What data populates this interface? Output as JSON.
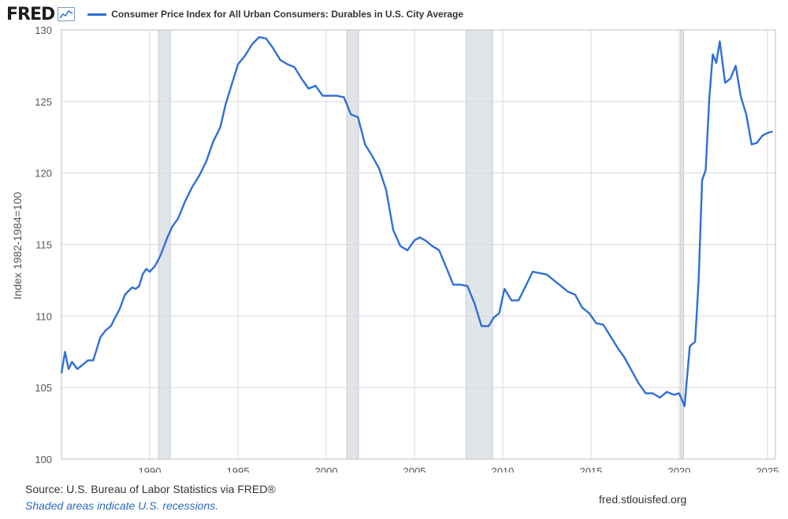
{
  "header": {
    "logo_text": "FRED",
    "logo_icon": "line-chart-icon",
    "series_title": "Consumer Price Index for All Urban Consumers: Durables in U.S. City Average"
  },
  "footer": {
    "source": "Source: U.S. Bureau of Labor Statistics via FRED®",
    "recession_note": "Shaded areas indicate U.S. recessions.",
    "site": "fred.stlouisfed.org"
  },
  "colors": {
    "line": "#2f6fd6",
    "grid": "#d9d9d9",
    "recession": "#e1e5ea",
    "axis_text": "#555555"
  },
  "chart_data": {
    "type": "line",
    "title": "",
    "ylabel": "Index 1982-1984=100",
    "xlabel": "",
    "xlim": [
      1985.0,
      2025.45
    ],
    "ylim": [
      100,
      130
    ],
    "yticks": [
      100,
      105,
      110,
      115,
      120,
      125,
      130
    ],
    "xticks": [
      1990,
      1995,
      2000,
      2005,
      2010,
      2015,
      2020,
      2025
    ],
    "grid": true,
    "legend": "top-left",
    "recessions": [
      [
        1990.5,
        1991.17
      ],
      [
        2001.17,
        2001.83
      ],
      [
        2007.92,
        2009.42
      ],
      [
        2020.08,
        2020.25
      ]
    ],
    "series": [
      {
        "name": "Consumer Price Index for All Urban Consumers: Durables in U.S. City Average",
        "x": [
          1985.0,
          1985.2,
          1985.4,
          1985.6,
          1985.9,
          1986.2,
          1986.5,
          1986.8,
          1987.2,
          1987.5,
          1987.8,
          1988.0,
          1988.3,
          1988.6,
          1989.0,
          1989.2,
          1989.4,
          1989.6,
          1989.8,
          1990.0,
          1990.3,
          1990.6,
          1991.0,
          1991.3,
          1991.6,
          1992.0,
          1992.4,
          1992.8,
          1993.2,
          1993.6,
          1994.0,
          1994.3,
          1994.6,
          1995.0,
          1995.4,
          1995.8,
          1996.2,
          1996.6,
          1997.0,
          1997.4,
          1997.8,
          1998.2,
          1998.6,
          1999.0,
          1999.4,
          1999.8,
          2000.2,
          2000.6,
          2001.0,
          2001.4,
          2001.8,
          2002.2,
          2002.6,
          2003.0,
          2003.4,
          2003.8,
          2004.2,
          2004.6,
          2005.0,
          2005.3,
          2005.6,
          2006.0,
          2006.4,
          2006.8,
          2007.2,
          2007.6,
          2008.0,
          2008.4,
          2008.8,
          2009.2,
          2009.5,
          2009.8,
          2010.1,
          2010.5,
          2010.9,
          2011.3,
          2011.7,
          2012.1,
          2012.5,
          2012.9,
          2013.3,
          2013.7,
          2014.1,
          2014.5,
          2014.9,
          2015.3,
          2015.7,
          2016.1,
          2016.5,
          2016.9,
          2017.3,
          2017.7,
          2018.1,
          2018.5,
          2018.9,
          2019.3,
          2019.7,
          2020.0,
          2020.3,
          2020.6,
          2020.9,
          2021.1,
          2021.3,
          2021.5,
          2021.7,
          2021.9,
          2022.1,
          2022.3,
          2022.6,
          2022.9,
          2023.2,
          2023.5,
          2023.8,
          2024.1,
          2024.4,
          2024.7,
          2025.0,
          2025.3
        ],
        "values": [
          106.0,
          107.5,
          106.3,
          106.8,
          106.3,
          106.6,
          106.9,
          106.9,
          108.5,
          109.0,
          109.3,
          109.8,
          110.5,
          111.5,
          112.0,
          111.9,
          112.1,
          112.9,
          113.3,
          113.1,
          113.5,
          114.2,
          115.5,
          116.3,
          116.8,
          118.0,
          119.0,
          119.8,
          120.8,
          122.2,
          123.2,
          124.8,
          126.0,
          127.6,
          128.2,
          129.0,
          129.5,
          129.4,
          128.7,
          127.9,
          127.6,
          127.4,
          126.6,
          125.9,
          126.1,
          125.4,
          125.4,
          125.4,
          125.3,
          124.1,
          123.9,
          122.0,
          121.2,
          120.3,
          118.8,
          116.0,
          114.9,
          114.6,
          115.3,
          115.5,
          115.3,
          114.9,
          114.6,
          113.4,
          112.2,
          112.2,
          112.1,
          110.9,
          109.3,
          109.3,
          109.9,
          110.2,
          111.9,
          111.1,
          111.1,
          112.1,
          113.1,
          113.0,
          112.9,
          112.5,
          112.1,
          111.7,
          111.5,
          110.6,
          110.2,
          109.5,
          109.4,
          108.6,
          107.8,
          107.1,
          106.2,
          105.3,
          104.6,
          104.6,
          104.3,
          104.7,
          104.5,
          104.6,
          103.7,
          107.9,
          108.2,
          112.5,
          119.5,
          120.2,
          125.1,
          128.3,
          127.7,
          129.2,
          126.3,
          126.6,
          127.5,
          125.3,
          124.1,
          122.0,
          122.1,
          122.6,
          122.8,
          122.9
        ]
      }
    ]
  }
}
